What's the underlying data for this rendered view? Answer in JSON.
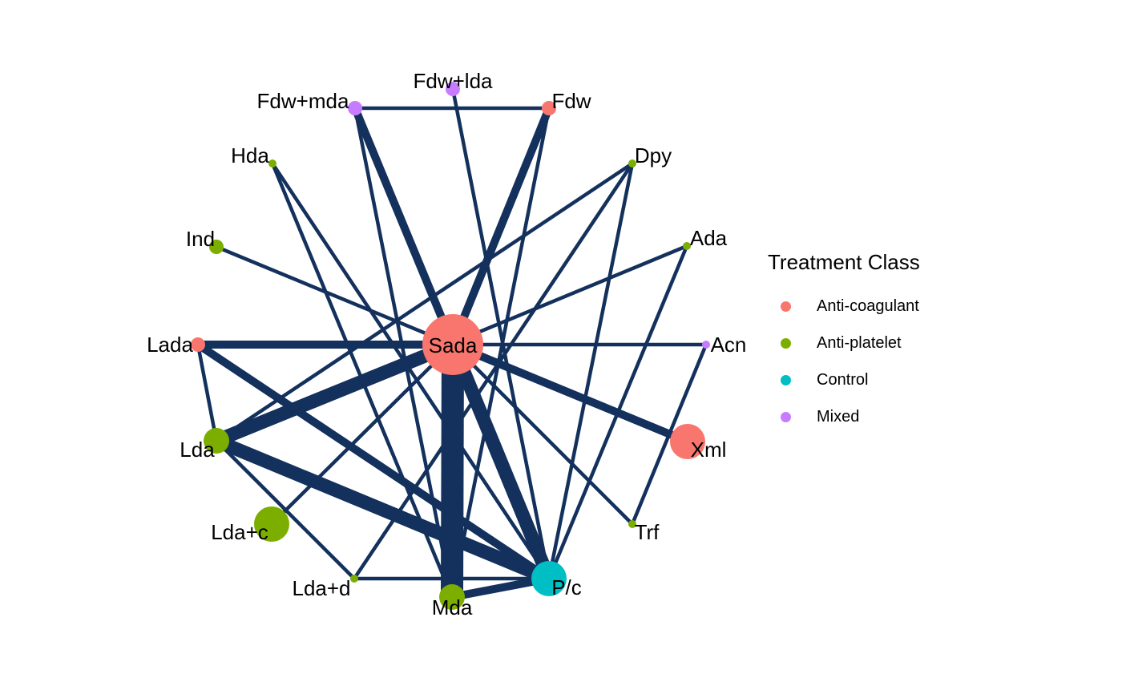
{
  "legend": {
    "title": "Treatment Class",
    "classes": [
      {
        "label": "Anti-coagulant",
        "color": "#F8766D"
      },
      {
        "label": "Anti-platelet",
        "color": "#7CAE00"
      },
      {
        "label": "Control",
        "color": "#00BFC4"
      },
      {
        "label": "Mixed",
        "color": "#C77CFF"
      }
    ]
  },
  "edge_color": "#13315C",
  "nodes": [
    {
      "id": "Sada",
      "label": "Sada",
      "class": "Anti-coagulant",
      "size": "largest"
    },
    {
      "id": "Fdw+lda",
      "label": "Fdw+lda",
      "class": "Mixed",
      "size": "small"
    },
    {
      "id": "Fdw",
      "label": "Fdw",
      "class": "Anti-coagulant",
      "size": "small"
    },
    {
      "id": "Dpy",
      "label": "Dpy",
      "class": "Anti-platelet",
      "size": "tiny"
    },
    {
      "id": "Ada",
      "label": "Ada",
      "class": "Anti-platelet",
      "size": "tiny"
    },
    {
      "id": "Acn",
      "label": "Acn",
      "class": "Mixed",
      "size": "tiny"
    },
    {
      "id": "Xml",
      "label": "Xml",
      "class": "Anti-coagulant",
      "size": "large"
    },
    {
      "id": "Trf",
      "label": "Trf",
      "class": "Anti-platelet",
      "size": "tiny"
    },
    {
      "id": "P/c",
      "label": "P/c",
      "class": "Control",
      "size": "large"
    },
    {
      "id": "Mda",
      "label": "Mda",
      "class": "Anti-platelet",
      "size": "medium"
    },
    {
      "id": "Lda+d",
      "label": "Lda+d",
      "class": "Anti-platelet",
      "size": "tiny"
    },
    {
      "id": "Lda+c",
      "label": "Lda+c",
      "class": "Anti-platelet",
      "size": "large"
    },
    {
      "id": "Lda",
      "label": "Lda",
      "class": "Anti-platelet",
      "size": "medium"
    },
    {
      "id": "Lada",
      "label": "Lada",
      "class": "Anti-coagulant",
      "size": "small"
    },
    {
      "id": "Ind",
      "label": "Ind",
      "class": "Anti-platelet",
      "size": "small"
    },
    {
      "id": "Hda",
      "label": "Hda",
      "class": "Anti-platelet",
      "size": "tiny"
    },
    {
      "id": "Fdw+mda",
      "label": "Fdw+mda",
      "class": "Mixed",
      "size": "small"
    }
  ],
  "edges": [
    {
      "from": "Sada",
      "to": "Mda",
      "weight": "very-heavy"
    },
    {
      "from": "Sada",
      "to": "P/c",
      "weight": "heavy"
    },
    {
      "from": "Sada",
      "to": "Lda",
      "weight": "heavy"
    },
    {
      "from": "Sada",
      "to": "Lada",
      "weight": "medium"
    },
    {
      "from": "Sada",
      "to": "Fdw+mda",
      "weight": "medium"
    },
    {
      "from": "Sada",
      "to": "Fdw",
      "weight": "medium"
    },
    {
      "from": "Sada",
      "to": "Xml",
      "weight": "medium"
    },
    {
      "from": "Sada",
      "to": "Ind",
      "weight": "thin"
    },
    {
      "from": "Sada",
      "to": "Acn",
      "weight": "thin"
    },
    {
      "from": "Sada",
      "to": "Trf",
      "weight": "thin"
    },
    {
      "from": "Sada",
      "to": "Lda+c",
      "weight": "thin"
    },
    {
      "from": "Lda",
      "to": "P/c",
      "weight": "heavy"
    },
    {
      "from": "Lada",
      "to": "P/c",
      "weight": "medium"
    },
    {
      "from": "Mda",
      "to": "P/c",
      "weight": "medium"
    },
    {
      "from": "Lada",
      "to": "Lda",
      "weight": "thin"
    },
    {
      "from": "Lda",
      "to": "Dpy",
      "weight": "thin"
    },
    {
      "from": "Lda",
      "to": "Ada",
      "weight": "thin"
    },
    {
      "from": "Lda",
      "to": "Lda+d",
      "weight": "thin"
    },
    {
      "from": "Lda+d",
      "to": "P/c",
      "weight": "thin"
    },
    {
      "from": "Lda+d",
      "to": "Dpy",
      "weight": "thin"
    },
    {
      "from": "Fdw+mda",
      "to": "Fdw",
      "weight": "thin"
    },
    {
      "from": "Fdw+mda",
      "to": "Mda",
      "weight": "thin"
    },
    {
      "from": "Fdw+lda",
      "to": "P/c",
      "weight": "thin"
    },
    {
      "from": "Fdw",
      "to": "Mda",
      "weight": "thin"
    },
    {
      "from": "Hda",
      "to": "Mda",
      "weight": "thin"
    },
    {
      "from": "Hda",
      "to": "P/c",
      "weight": "thin"
    },
    {
      "from": "Dpy",
      "to": "P/c",
      "weight": "thin"
    },
    {
      "from": "Ada",
      "to": "P/c",
      "weight": "thin"
    },
    {
      "from": "Acn",
      "to": "Trf",
      "weight": "thin"
    }
  ]
}
